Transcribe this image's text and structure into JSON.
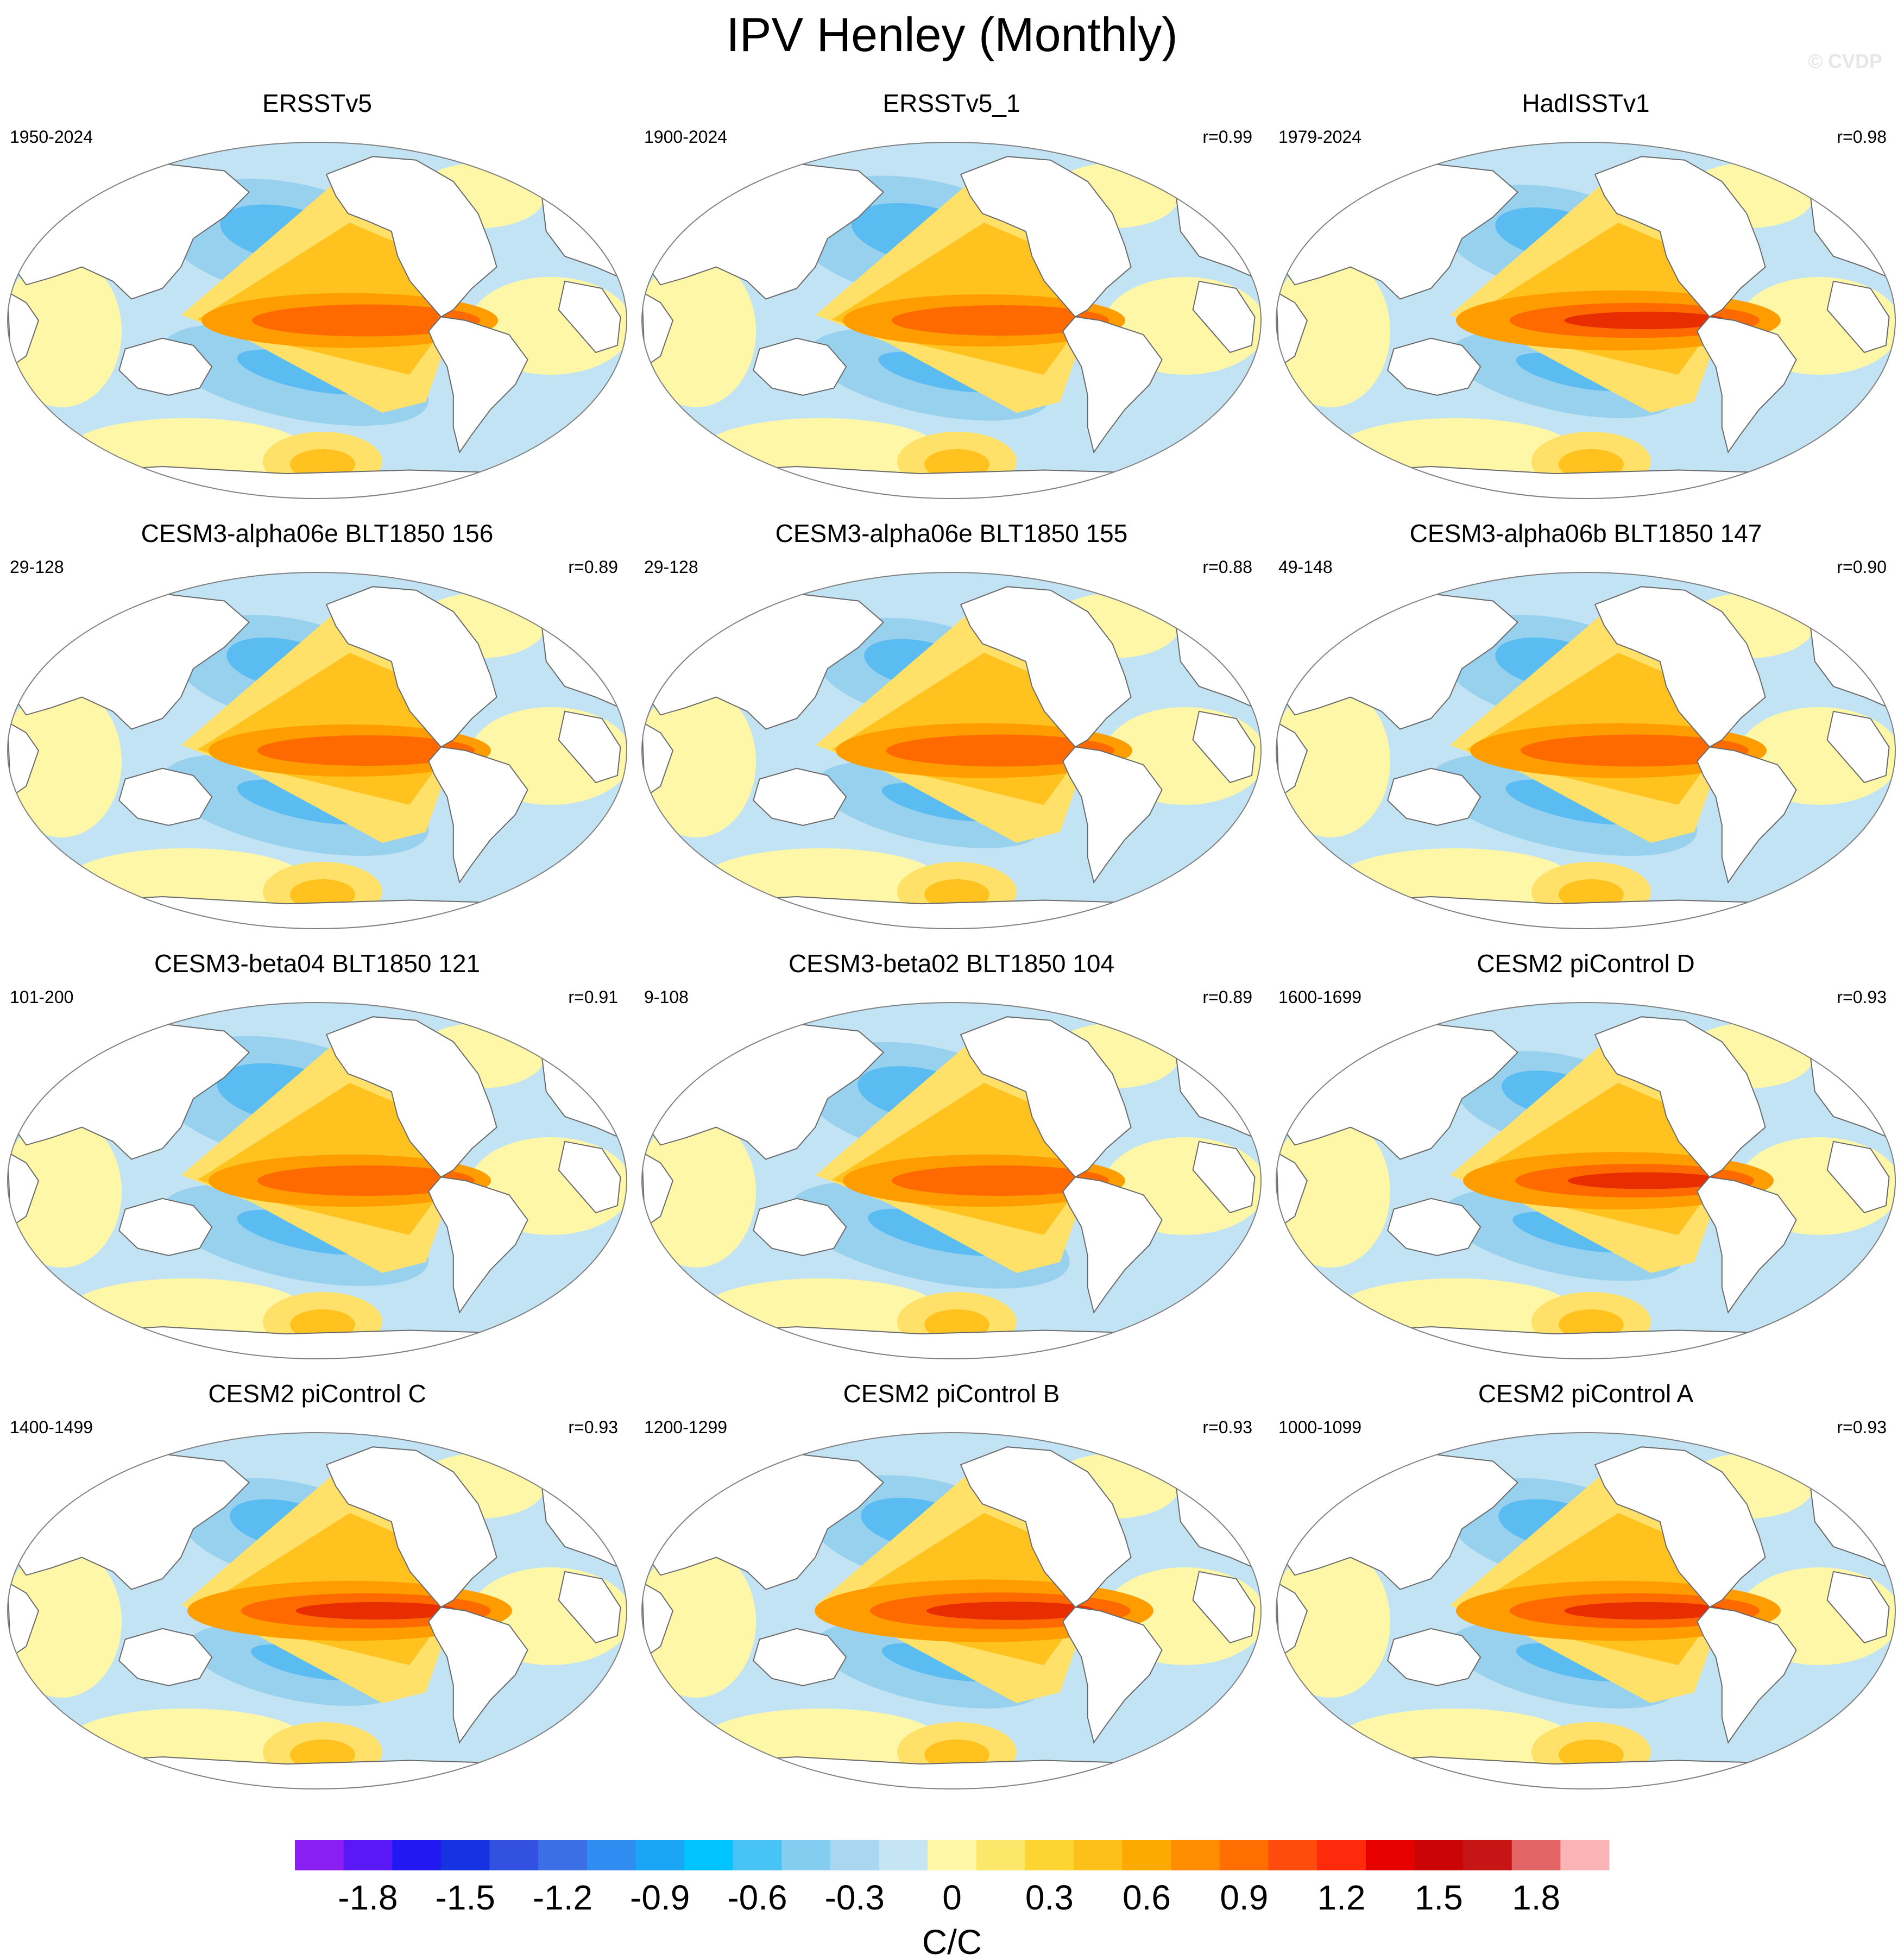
{
  "title": "IPV Henley (Monthly)",
  "watermark": "© CVDP",
  "units": "C/C",
  "colors": {
    "land": "#ffffff",
    "coast": "#6a6a6a",
    "neg1": "#c2e3f3",
    "neg2": "#98d1ee",
    "neg3": "#5bbcf2",
    "pos1": "#fff7a8",
    "pos2": "#ffe169",
    "pos3": "#ffc21e",
    "pos4": "#ff9c00",
    "pos5": "#ff6a00",
    "pos6": "#e82d00"
  },
  "colorbar": {
    "colors": [
      "#8a1ff2",
      "#5a18f6",
      "#2219f2",
      "#1732e0",
      "#3351e0",
      "#3c6ee6",
      "#2f8cf0",
      "#1aa6f5",
      "#00c3ff",
      "#47c4f5",
      "#84cdf0",
      "#a9d7f1",
      "#c6e5f4",
      "#fff8a6",
      "#fbe86a",
      "#fcd533",
      "#fdc01a",
      "#fdaa00",
      "#fe8e00",
      "#ff6e00",
      "#ff4b0c",
      "#ff2a0c",
      "#e80000",
      "#cb0505",
      "#c71414",
      "#e36465",
      "#fab4b6"
    ],
    "tick_labels": [
      "-1.8",
      "-1.5",
      "-1.2",
      "-0.9",
      "-0.6",
      "-0.3",
      "0",
      "0.3",
      "0.6",
      "0.9",
      "1.2",
      "1.5",
      "1.8"
    ]
  },
  "panels": [
    {
      "title": "ERSSTv5",
      "period": "1950-2024",
      "r": "",
      "amp": 1.05,
      "north": 1.0,
      "south": 1.0
    },
    {
      "title": "ERSSTv5_1",
      "period": "1900-2024",
      "r": "r=0.99",
      "amp": 1.0,
      "north": 1.05,
      "south": 0.9
    },
    {
      "title": "HadISSTv1",
      "period": "1979-2024",
      "r": "r=0.98",
      "amp": 1.15,
      "north": 0.9,
      "south": 0.85
    },
    {
      "title": "CESM3-alpha06e BLT1850 156",
      "period": "29-128",
      "r": "r=0.89",
      "amp": 1.0,
      "north": 0.9,
      "south": 1.0
    },
    {
      "title": "CESM3-alpha06e BLT1850 155",
      "period": "29-128",
      "r": "r=0.88",
      "amp": 1.05,
      "north": 0.85,
      "south": 0.85
    },
    {
      "title": "CESM3-alpha06b BLT1850 147",
      "period": "49-148",
      "r": "r=0.90",
      "amp": 1.05,
      "north": 0.9,
      "south": 1.0
    },
    {
      "title": "CESM3-beta04 BLT1850 121",
      "period": "101-200",
      "r": "r=0.91",
      "amp": 1.0,
      "north": 1.05,
      "south": 1.0
    },
    {
      "title": "CESM3-beta02 BLT1850 104",
      "period": "9-108",
      "r": "r=0.89",
      "amp": 1.0,
      "north": 0.95,
      "south": 1.05
    },
    {
      "title": "CESM2 piControl D",
      "period": "1600-1699",
      "r": "r=0.93",
      "amp": 1.1,
      "north": 0.8,
      "south": 0.9
    },
    {
      "title": "CESM2 piControl C",
      "period": "1400-1499",
      "r": "r=0.93",
      "amp": 1.15,
      "north": 0.85,
      "south": 0.8
    },
    {
      "title": "CESM2 piControl B",
      "period": "1200-1299",
      "r": "r=0.93",
      "amp": 1.2,
      "north": 0.9,
      "south": 0.85
    },
    {
      "title": "CESM2 piControl A",
      "period": "1000-1099",
      "r": "r=0.93",
      "amp": 1.15,
      "north": 0.85,
      "south": 0.85
    }
  ]
}
